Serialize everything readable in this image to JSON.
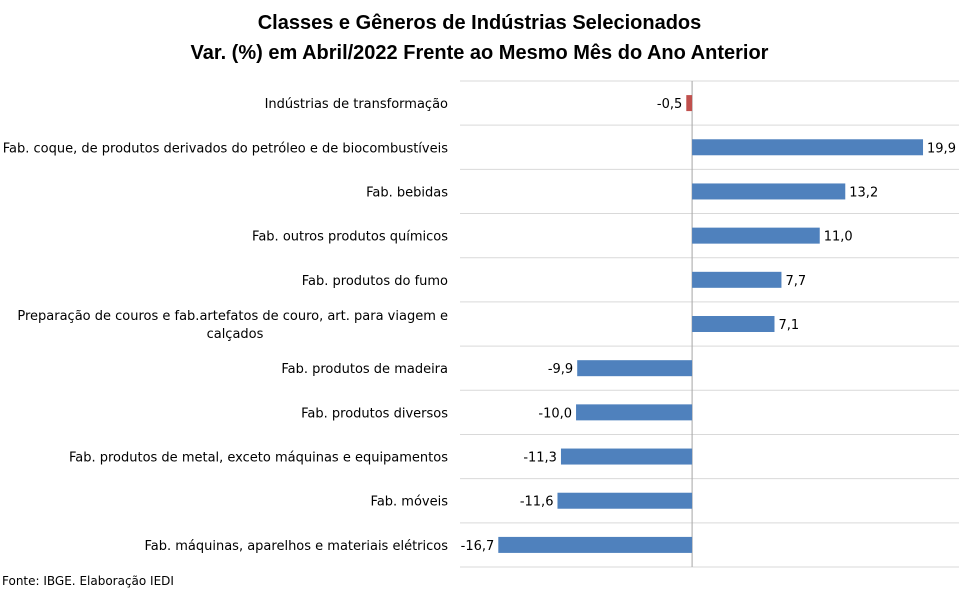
{
  "chart_data": {
    "type": "bar",
    "orientation": "horizontal",
    "title": "Classes e Gêneros de Indústrias Selecionados",
    "subtitle": "Var. (%) em Abril/2022 Frente ao Mesmo Mês do Ano Anterior",
    "categories": [
      [
        "Indústrias de transformação"
      ],
      [
        "Fab. coque, de produtos derivados do petróleo e de biocombustíveis"
      ],
      [
        "Fab. bebidas"
      ],
      [
        "Fab. outros produtos químicos"
      ],
      [
        "Fab. produtos do fumo"
      ],
      [
        "Preparação de couros e fab.artefatos de couro, art. para viagem e",
        "calçados"
      ],
      [
        "Fab. produtos de madeira"
      ],
      [
        "Fab. produtos diversos"
      ],
      [
        "Fab. produtos de metal, exceto máquinas e equipamentos"
      ],
      [
        "Fab. móveis"
      ],
      [
        "Fab. máquinas, aparelhos e materiais elétricos"
      ]
    ],
    "values": [
      -0.5,
      19.9,
      13.2,
      11.0,
      7.7,
      7.1,
      -9.9,
      -10.0,
      -11.3,
      -11.6,
      -16.7
    ],
    "value_labels": [
      "-0,5",
      "19,9",
      "13,2",
      "11,0",
      "7,7",
      "7,1",
      "-9,9",
      "-10,0",
      "-11,3",
      "-11,6",
      "-16,7"
    ],
    "colors": [
      "#c0504d",
      "#4f81bd",
      "#4f81bd",
      "#4f81bd",
      "#4f81bd",
      "#4f81bd",
      "#4f81bd",
      "#4f81bd",
      "#4f81bd",
      "#4f81bd",
      "#4f81bd"
    ],
    "xlim": [
      -20,
      23
    ],
    "grid": "horizontal separators",
    "legend": "none"
  },
  "footer": {
    "source": "Fonte: IBGE. Elaboração IEDI"
  }
}
